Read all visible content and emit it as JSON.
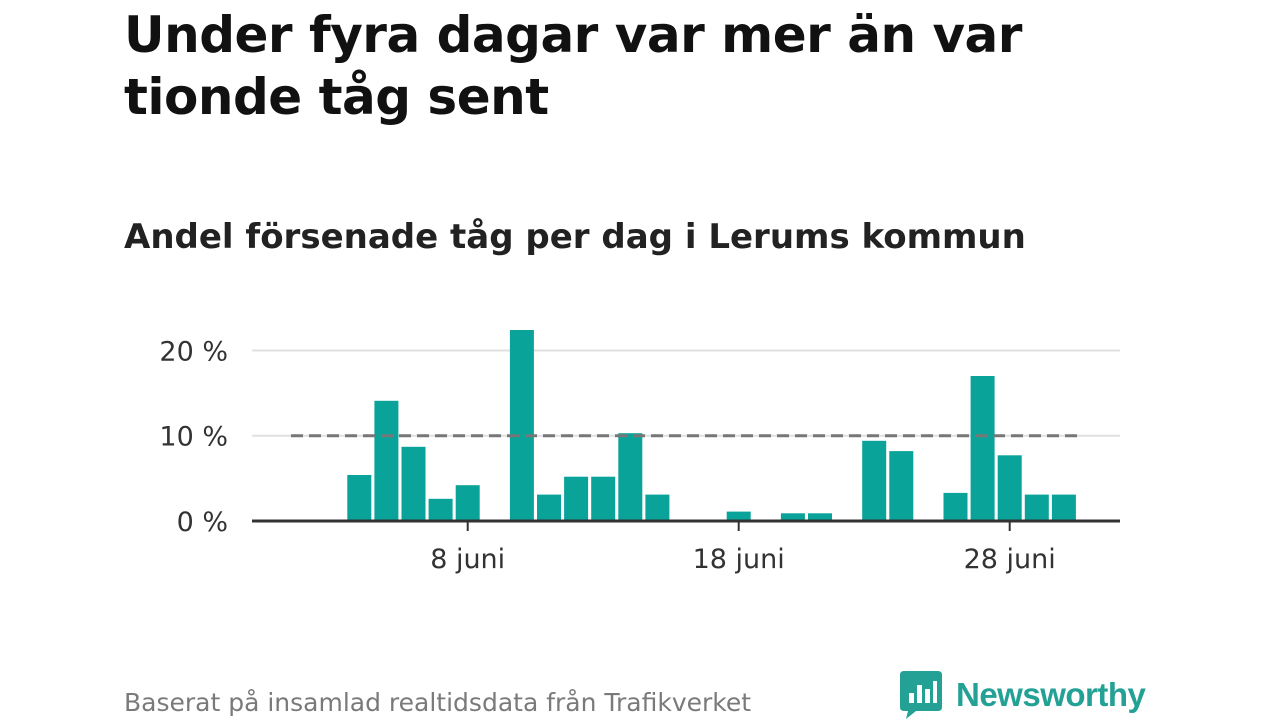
{
  "header": {
    "title": "Under fyra dagar var mer än var tionde tåg sent",
    "subtitle": "Andel försenade tåg per dag i Lerums kommun"
  },
  "footer": {
    "source": "Baserat på insamlad realtidsdata från Trafikverket",
    "brand": "Newsworthy"
  },
  "colors": {
    "bar": "#0aa39a",
    "reference_line": "#777777",
    "grid": "#e0e0e0",
    "axis": "#333333",
    "brand": "#23a194"
  },
  "chart_data": {
    "type": "bar",
    "title": "Andel försenade tåg per dag i Lerums kommun",
    "xlabel": "",
    "ylabel": "",
    "x_unit": "day of June",
    "x": [
      1,
      2,
      3,
      4,
      5,
      6,
      7,
      8,
      9,
      10,
      11,
      12,
      13,
      14,
      15,
      16,
      17,
      18,
      19,
      20,
      21,
      22,
      23,
      24,
      25,
      26,
      27,
      28,
      29,
      30
    ],
    "values": [
      0,
      0,
      0,
      5.4,
      14.1,
      8.7,
      2.6,
      4.2,
      0,
      22.4,
      3.1,
      5.2,
      5.2,
      10.3,
      3.1,
      0,
      0,
      1.1,
      0,
      0.9,
      0.9,
      0,
      9.4,
      8.2,
      0,
      3.3,
      17.0,
      7.7,
      3.1,
      3.1
    ],
    "ylim": [
      0,
      22.4
    ],
    "yticks": [
      0,
      10,
      20
    ],
    "ytick_labels": [
      "0 %",
      "10 %",
      "20 %"
    ],
    "xticks": [
      8,
      18,
      28
    ],
    "xtick_labels": [
      "8 juni",
      "18 juni",
      "28 juni"
    ],
    "reference_line": {
      "value": 10,
      "style": "dashed"
    },
    "grid": true,
    "legend": "none"
  }
}
